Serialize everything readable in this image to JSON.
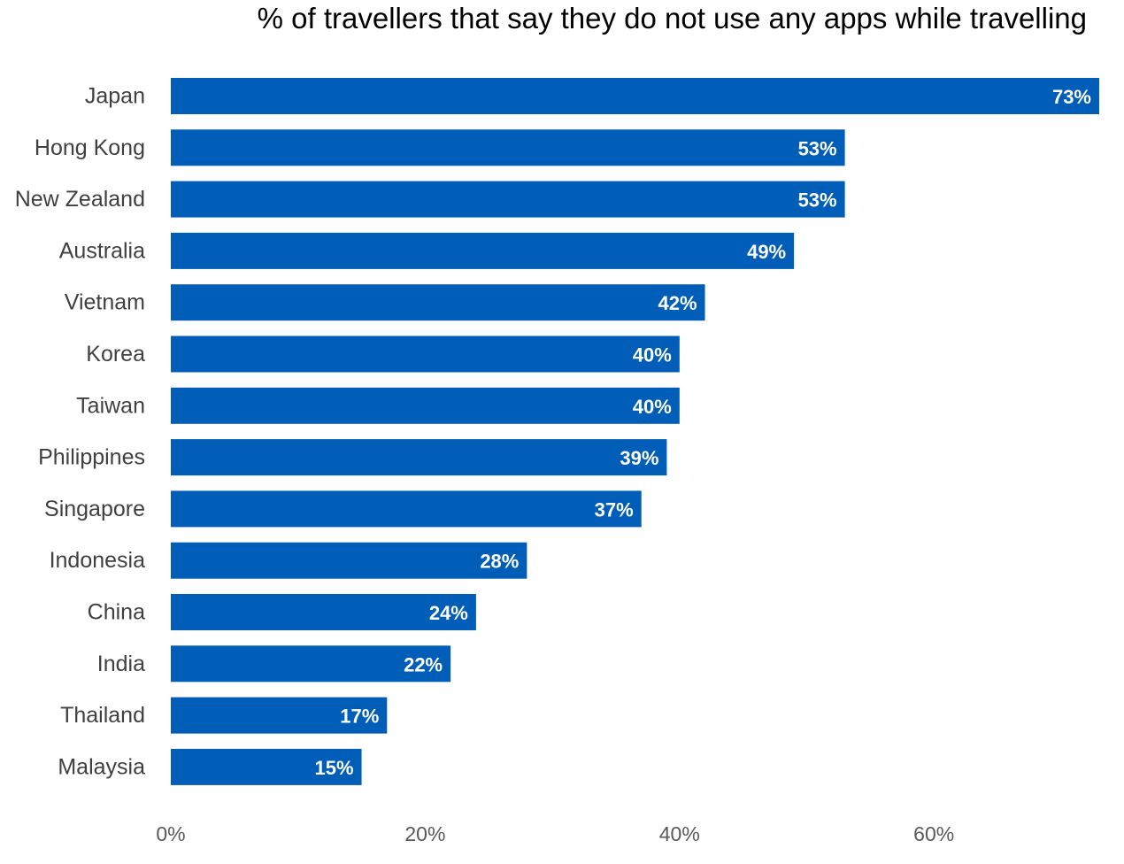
{
  "chart_data": {
    "type": "bar",
    "orientation": "horizontal",
    "title": "% of travellers that say they do not use any apps while travelling",
    "categories": [
      "Japan",
      "Hong Kong",
      "New Zealand",
      "Australia",
      "Vietnam",
      "Korea",
      "Taiwan",
      "Philippines",
      "Singapore",
      "Indonesia",
      "China",
      "India",
      "Thailand",
      "Malaysia"
    ],
    "values": [
      73,
      53,
      53,
      49,
      42,
      40,
      40,
      39,
      37,
      28,
      24,
      22,
      17,
      15
    ],
    "data_labels": [
      "73%",
      "53%",
      "53%",
      "49%",
      "42%",
      "40%",
      "40%",
      "39%",
      "37%",
      "28%",
      "24%",
      "22%",
      "17%",
      "15%"
    ],
    "xticks": [
      0,
      20,
      40,
      60
    ],
    "xtick_labels": [
      "0%",
      "20%",
      "40%",
      "60%"
    ],
    "xlim": [
      0,
      73
    ],
    "xlabel": "",
    "ylabel": "",
    "grid": false,
    "legend": "none",
    "bar_color": "#005EB8",
    "data_label_color": "#FFFFFF"
  }
}
